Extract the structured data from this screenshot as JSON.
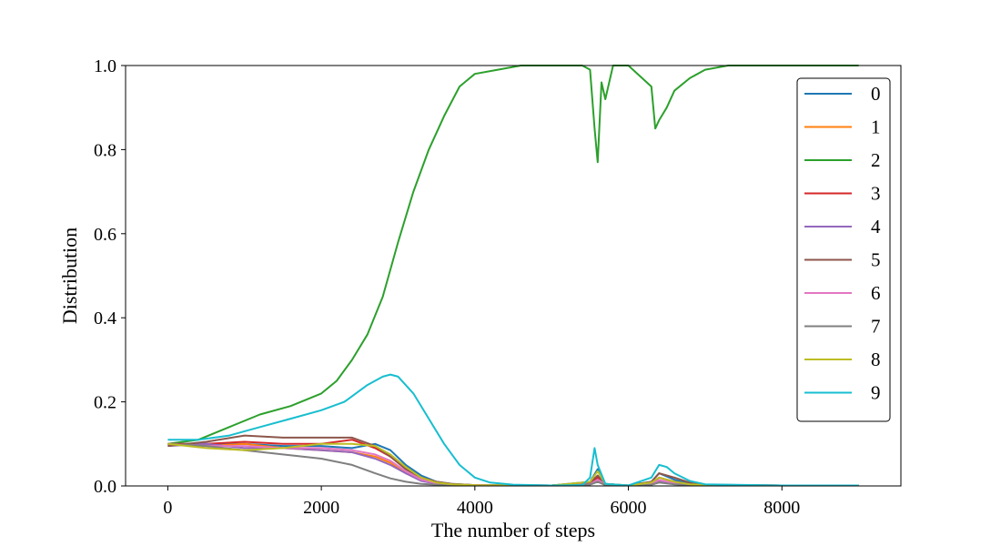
{
  "chart_data": {
    "type": "line",
    "title": "",
    "xlabel": "The number of steps",
    "ylabel": "Distribution",
    "xlim": [
      -550,
      9550
    ],
    "ylim": [
      0.0,
      1.0
    ],
    "xticks": [
      0,
      2000,
      4000,
      6000,
      8000
    ],
    "xtick_labels": [
      "0",
      "2000",
      "4000",
      "6000",
      "8000"
    ],
    "yticks": [
      0.0,
      0.2,
      0.4,
      0.6,
      0.8,
      1.0
    ],
    "ytick_labels": [
      "0.0",
      "0.2",
      "0.4",
      "0.6",
      "0.8",
      "1.0"
    ],
    "grid": false,
    "legend_position": "upper-right",
    "series": [
      {
        "name": "0",
        "color": "#1f77b4",
        "x": [
          0,
          500,
          1000,
          1500,
          2000,
          2400,
          2700,
          2900,
          3100,
          3300,
          3500,
          3700,
          4000,
          5000,
          5500,
          5600,
          5700,
          6000,
          6300,
          6400,
          6600,
          6800,
          7000,
          8000,
          9000
        ],
        "y": [
          0.1,
          0.1,
          0.1,
          0.095,
          0.095,
          0.09,
          0.1,
          0.085,
          0.05,
          0.025,
          0.01,
          0.005,
          0.002,
          0.001,
          0.01,
          0.04,
          0.005,
          0.001,
          0.01,
          0.03,
          0.015,
          0.005,
          0.002,
          0.001,
          0.001
        ]
      },
      {
        "name": "1",
        "color": "#ff7f0e",
        "x": [
          0,
          500,
          1000,
          1500,
          2000,
          2400,
          2700,
          2900,
          3100,
          3300,
          3500,
          3700,
          4000,
          5000,
          5500,
          5600,
          5700,
          6000,
          6300,
          6400,
          6600,
          6800,
          7000,
          8000,
          9000
        ],
        "y": [
          0.1,
          0.095,
          0.1,
          0.09,
          0.085,
          0.08,
          0.07,
          0.055,
          0.03,
          0.015,
          0.006,
          0.003,
          0.002,
          0.001,
          0.005,
          0.02,
          0.003,
          0.001,
          0.005,
          0.012,
          0.006,
          0.003,
          0.002,
          0.001,
          0.001
        ]
      },
      {
        "name": "2",
        "color": "#2ca02c",
        "x": [
          0,
          400,
          800,
          1200,
          1600,
          2000,
          2200,
          2400,
          2600,
          2800,
          3000,
          3200,
          3400,
          3600,
          3800,
          4000,
          4300,
          4600,
          5000,
          5400,
          5500,
          5560,
          5600,
          5650,
          5700,
          5800,
          6000,
          6300,
          6350,
          6400,
          6500,
          6600,
          6800,
          7000,
          7300,
          8000,
          9000
        ],
        "y": [
          0.1,
          0.11,
          0.14,
          0.17,
          0.19,
          0.22,
          0.25,
          0.3,
          0.36,
          0.45,
          0.58,
          0.7,
          0.8,
          0.88,
          0.95,
          0.98,
          0.99,
          1.0,
          1.0,
          1.0,
          0.99,
          0.85,
          0.77,
          0.96,
          0.92,
          1.0,
          1.0,
          0.95,
          0.85,
          0.87,
          0.9,
          0.94,
          0.97,
          0.99,
          1.0,
          1.0,
          1.0
        ]
      },
      {
        "name": "3",
        "color": "#d62728",
        "x": [
          0,
          500,
          1000,
          1500,
          2000,
          2400,
          2700,
          2900,
          3100,
          3300,
          3500,
          3700,
          4000,
          5000,
          5500,
          5600,
          5700,
          6000,
          6300,
          6400,
          6600,
          6800,
          7000,
          8000,
          9000
        ],
        "y": [
          0.1,
          0.1,
          0.105,
          0.1,
          0.1,
          0.11,
          0.09,
          0.07,
          0.04,
          0.02,
          0.008,
          0.004,
          0.002,
          0.001,
          0.006,
          0.02,
          0.004,
          0.001,
          0.006,
          0.02,
          0.01,
          0.004,
          0.002,
          0.001,
          0.001
        ]
      },
      {
        "name": "4",
        "color": "#9467bd",
        "x": [
          0,
          500,
          1000,
          1500,
          2000,
          2400,
          2700,
          2900,
          3100,
          3300,
          3500,
          3700,
          4000,
          5000,
          5500,
          5600,
          5700,
          6000,
          6300,
          6400,
          6600,
          6800,
          7000,
          8000,
          9000
        ],
        "y": [
          0.095,
          0.1,
          0.09,
          0.09,
          0.085,
          0.08,
          0.065,
          0.05,
          0.03,
          0.012,
          0.005,
          0.003,
          0.002,
          0.001,
          0.004,
          0.015,
          0.003,
          0.001,
          0.004,
          0.012,
          0.006,
          0.003,
          0.002,
          0.001,
          0.001
        ]
      },
      {
        "name": "5",
        "color": "#8c564b",
        "x": [
          0,
          500,
          1000,
          1500,
          2000,
          2400,
          2700,
          2900,
          3100,
          3300,
          3500,
          3700,
          4000,
          5000,
          5500,
          5600,
          5700,
          6000,
          6300,
          6400,
          6600,
          6800,
          7000,
          8000,
          9000
        ],
        "y": [
          0.095,
          0.105,
          0.12,
          0.115,
          0.115,
          0.115,
          0.095,
          0.07,
          0.04,
          0.02,
          0.01,
          0.005,
          0.002,
          0.001,
          0.008,
          0.025,
          0.005,
          0.001,
          0.01,
          0.03,
          0.02,
          0.008,
          0.003,
          0.001,
          0.001
        ]
      },
      {
        "name": "6",
        "color": "#e377c2",
        "x": [
          0,
          500,
          1000,
          1500,
          2000,
          2400,
          2700,
          2900,
          3100,
          3300,
          3500,
          3700,
          4000,
          5000,
          5500,
          5600,
          5700,
          6000,
          6300,
          6400,
          6600,
          6800,
          7000,
          8000,
          9000
        ],
        "y": [
          0.1,
          0.095,
          0.095,
          0.09,
          0.09,
          0.085,
          0.075,
          0.06,
          0.035,
          0.015,
          0.006,
          0.003,
          0.002,
          0.001,
          0.004,
          0.015,
          0.003,
          0.001,
          0.005,
          0.014,
          0.007,
          0.003,
          0.002,
          0.001,
          0.001
        ]
      },
      {
        "name": "7",
        "color": "#7f7f7f",
        "x": [
          0,
          500,
          1000,
          1500,
          2000,
          2400,
          2700,
          2900,
          3100,
          3300,
          3500,
          3700,
          4000,
          5000,
          5500,
          5600,
          5700,
          6000,
          6300,
          6400,
          6600,
          6800,
          7000,
          8000,
          9000
        ],
        "y": [
          0.1,
          0.095,
          0.085,
          0.075,
          0.065,
          0.05,
          0.03,
          0.018,
          0.01,
          0.005,
          0.003,
          0.002,
          0.001,
          0.001,
          0.003,
          0.01,
          0.002,
          0.001,
          0.003,
          0.008,
          0.004,
          0.002,
          0.001,
          0.001,
          0.001
        ]
      },
      {
        "name": "8",
        "color": "#bcbd22",
        "x": [
          0,
          500,
          1000,
          1500,
          2000,
          2400,
          2700,
          2900,
          3100,
          3300,
          3500,
          3700,
          4000,
          5000,
          5500,
          5600,
          5700,
          6000,
          6300,
          6400,
          6600,
          6800,
          7000,
          8000,
          9000
        ],
        "y": [
          0.1,
          0.09,
          0.085,
          0.09,
          0.1,
          0.1,
          0.095,
          0.075,
          0.045,
          0.02,
          0.008,
          0.004,
          0.002,
          0.001,
          0.01,
          0.035,
          0.005,
          0.001,
          0.008,
          0.02,
          0.01,
          0.004,
          0.002,
          0.001,
          0.001
        ]
      },
      {
        "name": "9",
        "color": "#17becf",
        "x": [
          0,
          400,
          800,
          1200,
          1600,
          2000,
          2300,
          2600,
          2800,
          2900,
          3000,
          3200,
          3400,
          3600,
          3800,
          4000,
          4200,
          4500,
          5000,
          5400,
          5500,
          5560,
          5600,
          5700,
          6000,
          6300,
          6400,
          6500,
          6600,
          6800,
          7000,
          8000,
          9000
        ],
        "y": [
          0.11,
          0.11,
          0.12,
          0.14,
          0.16,
          0.18,
          0.2,
          0.24,
          0.26,
          0.265,
          0.26,
          0.22,
          0.16,
          0.1,
          0.05,
          0.02,
          0.008,
          0.003,
          0.001,
          0.002,
          0.02,
          0.09,
          0.05,
          0.005,
          0.001,
          0.02,
          0.05,
          0.045,
          0.03,
          0.012,
          0.004,
          0.001,
          0.001
        ]
      }
    ]
  }
}
